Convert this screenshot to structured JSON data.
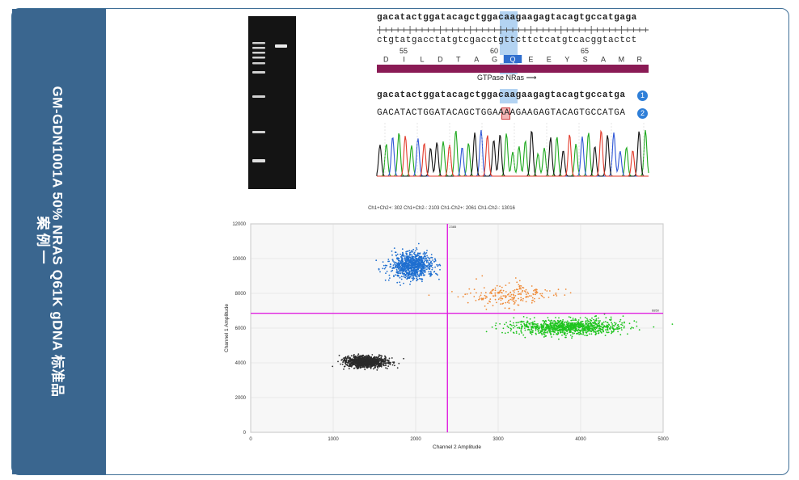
{
  "side": {
    "title": "GM-GDN1001A  50% NRAS Q61K gDNA 标准品",
    "case_label": "案例一"
  },
  "sequence": {
    "top_strand": "gacatactggatacagctggacaagaagagtacagtgccatgaga",
    "bottom_strand": "ctgtatgacctatgtcgacctgttcttctcatgtcacggtactct",
    "positions": [
      "55",
      "60",
      "65"
    ],
    "amino_acids": [
      "D",
      "I",
      "L",
      "D",
      "T",
      "A",
      "G",
      "Q",
      "E",
      "E",
      "Y",
      "S",
      "A",
      "M",
      "R"
    ],
    "feature_label": "GTPase NRas ⟶",
    "feature_color": "#8a1b55",
    "highlight_color": "#b3d3f2"
  },
  "alignment": {
    "ref_sequence": "gacatactggatacagctggacaagaagagtacagtgccatga",
    "read_sequence": "GACATACTGGATACAGCTGGAAAAGAAGAGTACAGTGCCATGA",
    "ref_badge": "1",
    "read_badge": "2",
    "mutant_base": "A"
  },
  "chart_data": {
    "type": "scatter",
    "title": "Ch1+Ch2+: 302  Ch1+Ch2-: 2103  Ch1-Ch2+: 2061  Ch1-Ch2-: 13016",
    "xlabel": "Channel 2 Amplitude",
    "ylabel": "Channel 1 Amplitude",
    "xlim": [
      0,
      5000
    ],
    "ylim": [
      0,
      12000
    ],
    "x_ticks": [
      "0",
      "1000",
      "2000",
      "3000",
      "4000",
      "5000"
    ],
    "y_ticks": [
      "0",
      "2000",
      "4000",
      "6000",
      "8000",
      "10000",
      "12000"
    ],
    "x_threshold": 2385,
    "y_threshold": 6850,
    "x_threshold_label": "2385",
    "y_threshold_label": "6850",
    "threshold_color": "#e020e0",
    "grid": true,
    "clusters": [
      {
        "name": "Ch1+Ch2-",
        "color": "#1f6fd0",
        "center": [
          1950,
          9600
        ],
        "spread": [
          130,
          380
        ],
        "count": 900
      },
      {
        "name": "Ch1+Ch2+",
        "color": "#ef8c3a",
        "center": [
          3150,
          7900
        ],
        "spread": [
          270,
          330
        ],
        "count": 200
      },
      {
        "name": "Ch1-Ch2+",
        "color": "#1fc41f",
        "center": [
          3850,
          6050
        ],
        "spread": [
          330,
          220
        ],
        "count": 1000
      },
      {
        "name": "Ch1-Ch2-",
        "color": "#2a2a2a",
        "center": [
          1400,
          4050
        ],
        "spread": [
          120,
          150
        ],
        "count": 1200
      }
    ]
  }
}
